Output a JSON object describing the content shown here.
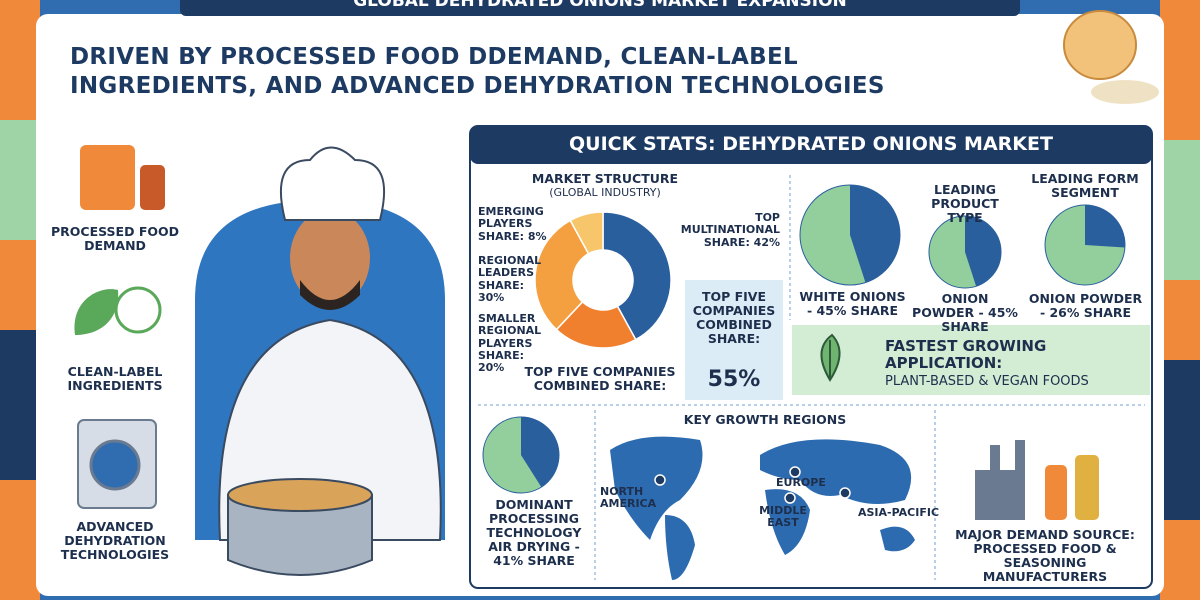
{
  "banner": {
    "title": "GLOBAL DEHYDRATED ONIONS MARKET EXPANSION"
  },
  "headline": {
    "line1": "DRIVEN BY PROCESSED FOOD DDEMAND, CLEAN-LABEL",
    "line2": "INGREDIENTS, AND ADVANCED DEHYDRATION TECHNOLOGIES"
  },
  "drivers": [
    {
      "label": "PROCESSED FOOD DEMAND"
    },
    {
      "label": "CLEAN-LABEL INGREDIENTS"
    },
    {
      "label": "ADVANCED DEHYDRATION TECHNOLOGIES"
    }
  ],
  "stats": {
    "title": "QUICK STATS: DEHYDRATED ONIONS MARKET",
    "market_structure": {
      "title": "MARKET STRUCTURE",
      "subtitle": "(GLOBAL INDUSTRY)",
      "segments": [
        {
          "label": "TOP MULTINATIONAL SHARE: 42%",
          "value": 42,
          "color": "#2a5f9e"
        },
        {
          "label": "SMALLER REGIONAL PLAYERS SHARE: 20%",
          "value": 20,
          "color": "#f07f2e"
        },
        {
          "label": "REGIONAL LEADERS SHARE: 30%",
          "value": 30,
          "color": "#f5a040"
        },
        {
          "label": "EMERGING PLAYERS SHARE: 8%",
          "value": 8,
          "color": "#f8c66a"
        }
      ],
      "footer": "TOP FIVE COMPANIES COMBINED SHARE:"
    },
    "top_five": {
      "label": "TOP FIVE COMPANIES COMBINED SHARE:",
      "value_text": "55%"
    },
    "pie_colors": {
      "share": "#2a5f9e",
      "rest": "#92cf9d"
    },
    "pies": [
      {
        "label": "WHITE ONIONS - 45% SHARE",
        "value": 45
      },
      {
        "heading": "LEADING PRODUCT TYPE",
        "label": "ONION POWDER - 45% SHARE",
        "value": 45
      },
      {
        "heading": "LEADING FORM SEGMENT",
        "label": "ONION POWDER - 26% SHARE",
        "value": 26
      }
    ],
    "application": {
      "title": "FASTEST GROWING APPLICATION:",
      "value": "PLANT-BASED & VEGAN FOODS"
    },
    "processing": {
      "label": "DOMINANT PROCESSING TECHNOLOGY AIR DRYING - 41% SHARE",
      "value": 41
    },
    "regions": {
      "title": "KEY GROWTH REGIONS",
      "items": [
        "NORTH AMERICA",
        "EUROPE",
        "MIDDLE EAST",
        "ASIA-PACIFIC"
      ]
    },
    "demand": {
      "label": "MAJOR DEMAND SOURCE: PROCESSED FOOD & SEASONING MANUFACTURERS"
    }
  }
}
